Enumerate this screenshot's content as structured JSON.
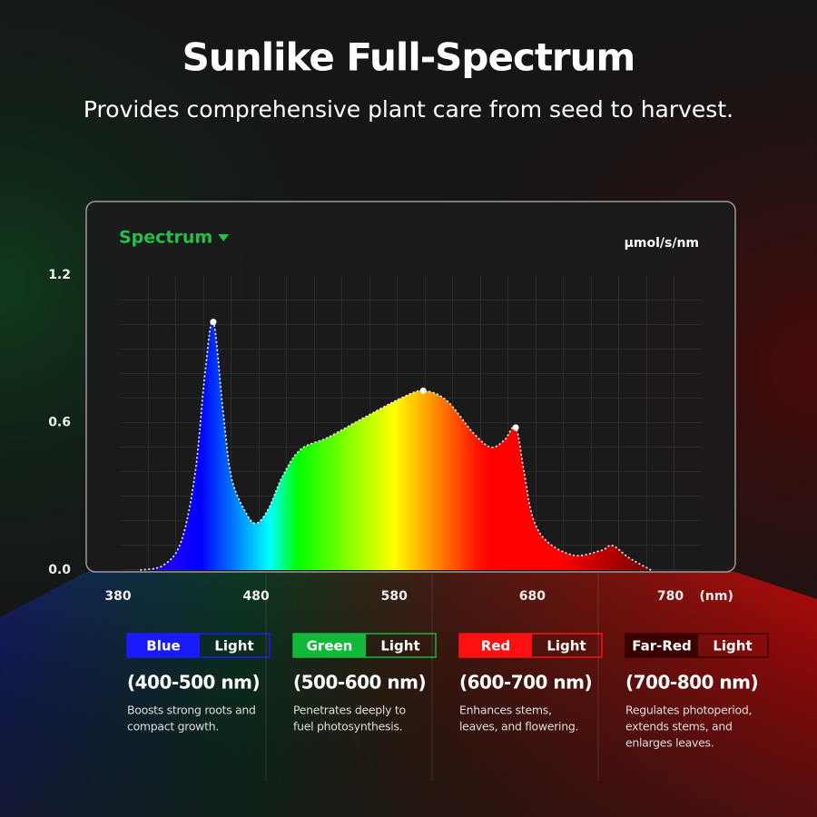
{
  "header": {
    "title": "Sunlike Full-Spectrum",
    "subtitle": "Provides comprehensive plant care from seed to harvest."
  },
  "chart_data": {
    "type": "area",
    "menu": "Spectrum",
    "y_unit": "μmol/s/nm",
    "x_unit": "(nm)",
    "x": [
      396,
      413,
      426,
      436,
      443,
      449,
      456,
      462,
      472,
      480,
      489,
      499,
      512,
      532,
      558,
      585,
      601,
      618,
      637,
      650,
      660,
      668,
      674,
      680,
      690,
      710,
      730,
      738,
      750,
      766
    ],
    "values": [
      0,
      0.02,
      0.12,
      0.4,
      0.8,
      1.01,
      0.65,
      0.38,
      0.24,
      0.19,
      0.25,
      0.38,
      0.49,
      0.54,
      0.62,
      0.7,
      0.73,
      0.69,
      0.56,
      0.5,
      0.53,
      0.58,
      0.4,
      0.22,
      0.12,
      0.06,
      0.08,
      0.1,
      0.05,
      0
    ],
    "xlim": [
      357,
      827
    ],
    "xticks": [
      380,
      480,
      580,
      680,
      780
    ],
    "ylim": [
      0,
      1.5
    ],
    "yticks": [
      {
        "value": 0,
        "label": "0.0"
      },
      0.6,
      1.2
    ],
    "line_color": "#ffffff"
  },
  "bands": [
    {
      "name": "Blue",
      "suffix": "Light",
      "color": "#1a1aff",
      "range": "(400-500 nm)",
      "description": [
        "Boosts strong roots and",
        "compact growth."
      ]
    },
    {
      "name": "Green",
      "suffix": "Light",
      "color": "#12b83a",
      "range": "(500-600 nm)",
      "description": [
        "Penetrates deeply to",
        "fuel photosynthesis."
      ]
    },
    {
      "name": "Red",
      "suffix": "Light",
      "color": "#ff1010",
      "range": "(600-700 nm)",
      "description": [
        "Enhances stems,",
        "leaves, and flowering."
      ]
    },
    {
      "name": "Far-Red",
      "suffix": "Light",
      "color": "#3a0000",
      "range": "(700-800 nm)",
      "description": [
        "Regulates photoperiod,",
        "extends stems, and",
        "enlarges leaves."
      ]
    }
  ]
}
